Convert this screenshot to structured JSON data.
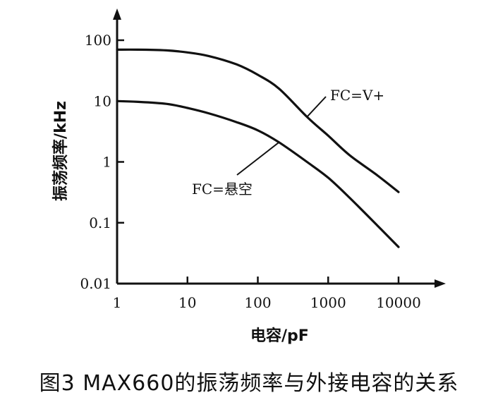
{
  "chart_data": {
    "type": "line",
    "xscale": "log",
    "yscale": "log",
    "xlabel": "电容/pF",
    "ylabel": "振荡频率/kHz",
    "xlim": [
      1,
      10000
    ],
    "ylim": [
      0.01,
      100
    ],
    "xticks": [
      "1",
      "10",
      "100",
      "1000",
      "10000"
    ],
    "yticks": [
      "100",
      "10",
      "1",
      "0.1",
      "0.01"
    ],
    "series": [
      {
        "name": "FC=V+",
        "x": [
          1,
          2,
          5,
          10,
          20,
          50,
          100,
          200,
          500,
          1000,
          2000,
          5000,
          10000
        ],
        "y": [
          70,
          70,
          68,
          63,
          55,
          40,
          27,
          16,
          5.5,
          2.7,
          1.3,
          0.6,
          0.32
        ]
      },
      {
        "name": "FC=悬空",
        "x": [
          1,
          2,
          5,
          10,
          20,
          50,
          100,
          200,
          500,
          1000,
          2000,
          5000,
          10000
        ],
        "y": [
          10,
          9.7,
          9,
          7.7,
          6.3,
          4.5,
          3.3,
          2.1,
          1.0,
          0.55,
          0.26,
          0.09,
          0.04
        ]
      }
    ],
    "caption": "图3   MAX660的振荡频率与外接电容的关系"
  }
}
